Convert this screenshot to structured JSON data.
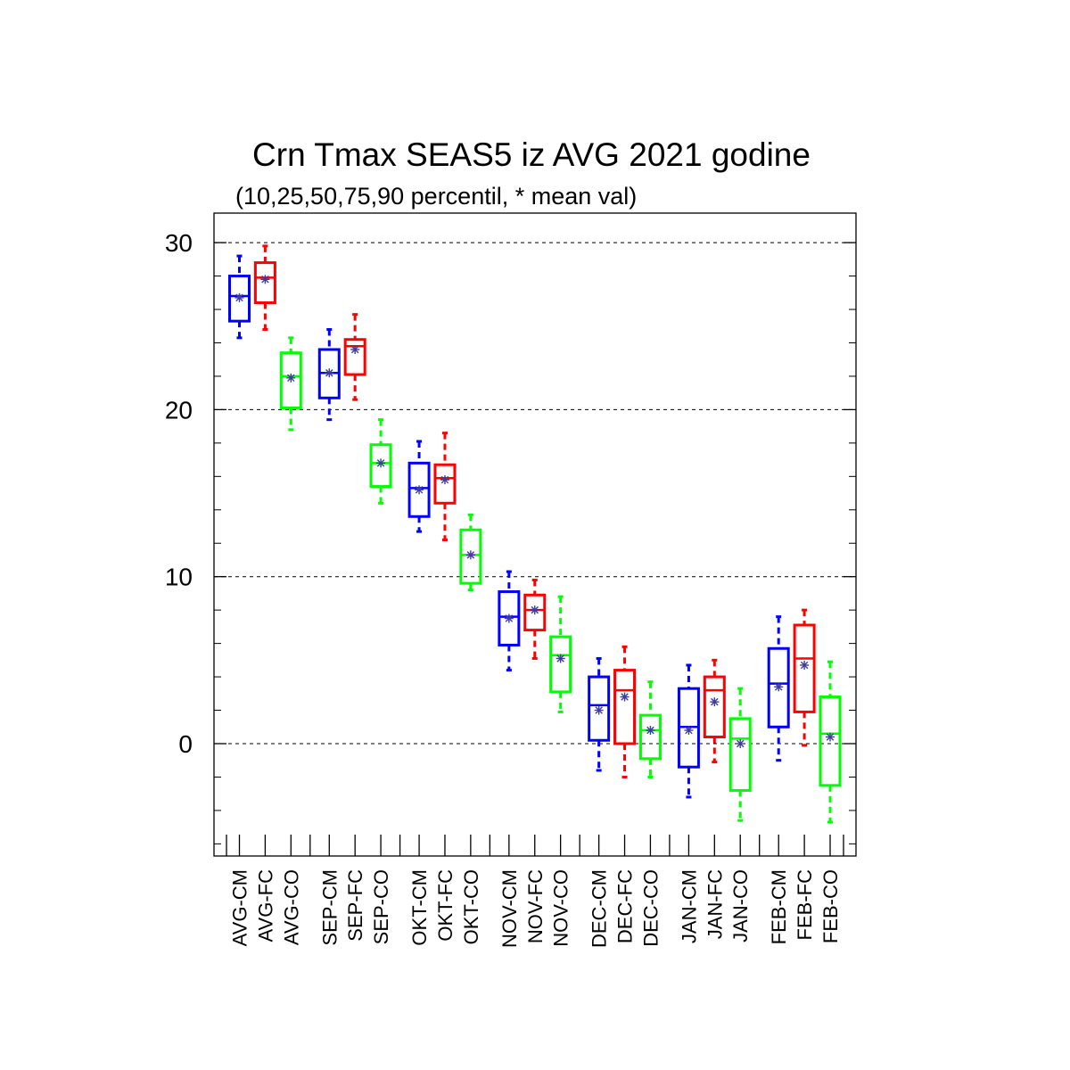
{
  "chart_data": {
    "type": "boxplot",
    "title": "Crn Tmax SEAS5 iz AVG 2021 godine",
    "subtitle": "(10,25,50,75,90 percentil, * mean val)",
    "xlabel": "",
    "ylabel": "",
    "ylim": [
      -6.8,
      31.8
    ],
    "yticks": [
      0,
      10,
      20,
      30
    ],
    "ytick_labels": [
      "0",
      "10",
      "20",
      "30"
    ],
    "grid": "horizontal dashed at major ticks",
    "legend": "none",
    "colors": {
      "CM": "#0000ff",
      "FC": "#ff0000",
      "CO": "#00ff00",
      "mean_marker": "#3c3c9c"
    },
    "boxes": [
      {
        "label": "AVG-CM",
        "kind": "CM",
        "p10": 24.3,
        "p25": 25.3,
        "p50": 26.8,
        "p75": 28.0,
        "p90": 29.2,
        "mean": 26.7
      },
      {
        "label": "AVG-FC",
        "kind": "FC",
        "p10": 24.8,
        "p25": 26.4,
        "p50": 27.9,
        "p75": 28.8,
        "p90": 29.8,
        "mean": 27.8
      },
      {
        "label": "AVG-CO",
        "kind": "CO",
        "p10": 18.8,
        "p25": 20.1,
        "p50": 22.0,
        "p75": 23.4,
        "p90": 24.3,
        "mean": 21.9
      },
      {
        "label": "SEP-CM",
        "kind": "CM",
        "p10": 19.4,
        "p25": 20.7,
        "p50": 22.2,
        "p75": 23.6,
        "p90": 24.8,
        "mean": 22.2
      },
      {
        "label": "SEP-FC",
        "kind": "FC",
        "p10": 20.6,
        "p25": 22.1,
        "p50": 23.8,
        "p75": 24.2,
        "p90": 25.7,
        "mean": 23.6
      },
      {
        "label": "SEP-CO",
        "kind": "CO",
        "p10": 14.4,
        "p25": 15.4,
        "p50": 16.8,
        "p75": 17.9,
        "p90": 19.4,
        "mean": 16.8
      },
      {
        "label": "OKT-CM",
        "kind": "CM",
        "p10": 12.7,
        "p25": 13.6,
        "p50": 15.3,
        "p75": 16.8,
        "p90": 18.1,
        "mean": 15.2
      },
      {
        "label": "OKT-FC",
        "kind": "FC",
        "p10": 12.2,
        "p25": 14.4,
        "p50": 15.9,
        "p75": 16.7,
        "p90": 18.6,
        "mean": 15.8
      },
      {
        "label": "OKT-CO",
        "kind": "CO",
        "p10": 9.2,
        "p25": 9.6,
        "p50": 11.3,
        "p75": 12.8,
        "p90": 13.7,
        "mean": 11.3
      },
      {
        "label": "NOV-CM",
        "kind": "CM",
        "p10": 4.4,
        "p25": 5.9,
        "p50": 7.6,
        "p75": 9.1,
        "p90": 10.3,
        "mean": 7.5
      },
      {
        "label": "NOV-FC",
        "kind": "FC",
        "p10": 5.1,
        "p25": 6.8,
        "p50": 8.0,
        "p75": 8.9,
        "p90": 9.8,
        "mean": 8.0
      },
      {
        "label": "NOV-CO",
        "kind": "CO",
        "p10": 1.9,
        "p25": 3.1,
        "p50": 5.3,
        "p75": 6.4,
        "p90": 8.8,
        "mean": 5.1
      },
      {
        "label": "DEC-CM",
        "kind": "CM",
        "p10": -1.6,
        "p25": 0.2,
        "p50": 2.3,
        "p75": 4.0,
        "p90": 5.1,
        "mean": 2.0
      },
      {
        "label": "DEC-FC",
        "kind": "FC",
        "p10": -2.0,
        "p25": 0.0,
        "p50": 3.2,
        "p75": 4.4,
        "p90": 5.8,
        "mean": 2.8
      },
      {
        "label": "DEC-CO",
        "kind": "CO",
        "p10": -2.0,
        "p25": -0.9,
        "p50": 0.8,
        "p75": 1.7,
        "p90": 3.7,
        "mean": 0.8
      },
      {
        "label": "JAN-CM",
        "kind": "CM",
        "p10": -3.2,
        "p25": -1.4,
        "p50": 1.0,
        "p75": 3.3,
        "p90": 4.7,
        "mean": 0.8
      },
      {
        "label": "JAN-FC",
        "kind": "FC",
        "p10": -1.1,
        "p25": 0.4,
        "p50": 3.2,
        "p75": 4.0,
        "p90": 5.0,
        "mean": 2.5
      },
      {
        "label": "JAN-CO",
        "kind": "CO",
        "p10": -4.6,
        "p25": -2.8,
        "p50": 0.3,
        "p75": 1.5,
        "p90": 3.3,
        "mean": 0.0
      },
      {
        "label": "FEB-CM",
        "kind": "CM",
        "p10": -1.0,
        "p25": 1.0,
        "p50": 3.6,
        "p75": 5.7,
        "p90": 7.6,
        "mean": 3.4
      },
      {
        "label": "FEB-FC",
        "kind": "FC",
        "p10": -0.1,
        "p25": 1.9,
        "p50": 5.1,
        "p75": 7.1,
        "p90": 8.0,
        "mean": 4.7
      },
      {
        "label": "FEB-CO",
        "kind": "CO",
        "p10": -4.7,
        "p25": -2.5,
        "p50": 0.6,
        "p75": 2.8,
        "p90": 4.9,
        "mean": 0.4
      }
    ]
  }
}
